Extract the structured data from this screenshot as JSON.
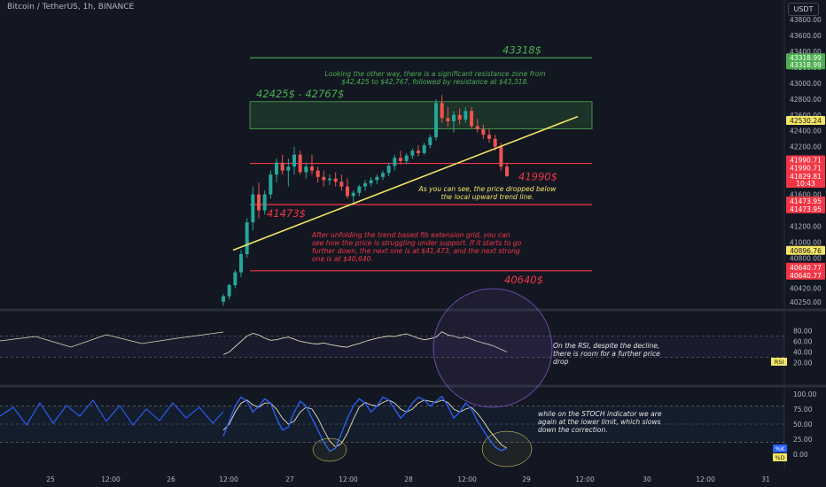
{
  "header": {
    "title": "Bitcoin / TetherUS, 1h, BINANCE",
    "currency": "USDT"
  },
  "colors": {
    "background": "#131722",
    "up": "#26a69a",
    "down": "#ef5350",
    "red_level": "#f23645",
    "green_level": "#4caf50",
    "trendline": "#f5e663",
    "rsi_line": "#e0d6b8",
    "stoch_k": "#2962ff",
    "stoch_d": "#e8e0c8"
  },
  "chart_data": [
    {
      "type": "candlestick",
      "series_name": "BTC/USDT",
      "y_ticks": [
        43800,
        43600,
        43400,
        43200,
        43000,
        42800,
        42600,
        42400,
        42200,
        42000,
        41800,
        41600,
        41400,
        41200,
        41000,
        40800,
        40600,
        40420,
        40250
      ],
      "x_ticks": [
        "25",
        "12:00",
        "26",
        "12:00",
        "27",
        "12:00",
        "28",
        "12:00",
        "29",
        "12:00",
        "30",
        "12:00",
        "31"
      ],
      "levels": [
        {
          "label": "43318$",
          "value": 43318,
          "color": "#4caf50"
        },
        {
          "label": "41990$",
          "value": 41990,
          "color": "#f23645"
        },
        {
          "label": "41473$",
          "value": 41473,
          "color": "#f23645"
        },
        {
          "label": "40640$",
          "value": 40640,
          "color": "#f23645"
        }
      ],
      "zone": {
        "label": "42425$ - 42767$",
        "from": 42425,
        "to": 42767
      },
      "price_tags": [
        {
          "text": "43318.99",
          "value": 43318.99,
          "color": "#4caf50"
        },
        {
          "text": "43318.99",
          "value": 43318.99,
          "color": "#4caf50",
          "dy": 8
        },
        {
          "text": "42530.24",
          "value": 42530.24,
          "color": "#f5e663",
          "fg": "#131722"
        },
        {
          "text": "41990.71",
          "value": 41990.71,
          "color": "#f23645",
          "dy": -4
        },
        {
          "text": "41990.71",
          "value": 41990.71,
          "color": "#f23645",
          "dy": 5
        },
        {
          "text": "41829.81",
          "value": 41829.81,
          "color": "#f23645"
        },
        {
          "text": "10:43",
          "value": 41829.81,
          "color": "#f23645",
          "dy": 8
        },
        {
          "text": "41473.95",
          "value": 41473.95,
          "color": "#f23645",
          "dy": -4
        },
        {
          "text": "41473.95",
          "value": 41473.95,
          "color": "#f23645",
          "dy": 5
        },
        {
          "text": "40896.76",
          "value": 40896.76,
          "color": "#f5e663",
          "fg": "#131722"
        },
        {
          "text": "40640.77",
          "value": 40640.77,
          "color": "#f23645",
          "dy": -4
        },
        {
          "text": "40640.77",
          "value": 40640.77,
          "color": "#f23645",
          "dy": 5
        }
      ],
      "trendline": [
        [
          40900,
          0
        ],
        [
          42580,
          1
        ]
      ],
      "candles": [
        [
          40250,
          40350,
          40200,
          40320
        ],
        [
          40320,
          40480,
          40280,
          40460
        ],
        [
          40460,
          40650,
          40420,
          40620
        ],
        [
          40620,
          40900,
          40560,
          40850
        ],
        [
          40850,
          41300,
          40800,
          41250
        ],
        [
          41250,
          41700,
          41150,
          41600
        ],
        [
          41600,
          41750,
          41300,
          41400
        ],
        [
          41400,
          41650,
          41350,
          41600
        ],
        [
          41600,
          41900,
          41550,
          41850
        ],
        [
          41850,
          42050,
          41750,
          42000
        ],
        [
          42000,
          42100,
          41850,
          41900
        ],
        [
          41900,
          42050,
          41700,
          41950
        ],
        [
          41950,
          42200,
          41850,
          42100
        ],
        [
          42100,
          42150,
          41850,
          41880
        ],
        [
          41880,
          42000,
          41800,
          41950
        ],
        [
          41950,
          42100,
          41850,
          41900
        ],
        [
          41900,
          41950,
          41750,
          41820
        ],
        [
          41820,
          41900,
          41700,
          41780
        ],
        [
          41780,
          41850,
          41720,
          41800
        ],
        [
          41800,
          41880,
          41700,
          41760
        ],
        [
          41760,
          41850,
          41650,
          41700
        ],
        [
          41700,
          41800,
          41550,
          41580
        ],
        [
          41580,
          41650,
          41500,
          41620
        ],
        [
          41620,
          41720,
          41580,
          41700
        ],
        [
          41700,
          41780,
          41650,
          41740
        ],
        [
          41740,
          41820,
          41700,
          41780
        ],
        [
          41780,
          41850,
          41730,
          41820
        ],
        [
          41820,
          41900,
          41780,
          41870
        ],
        [
          41870,
          42000,
          41830,
          41960
        ],
        [
          41960,
          42100,
          41900,
          42060
        ],
        [
          42060,
          42150,
          41980,
          42020
        ],
        [
          42020,
          42120,
          41980,
          42090
        ],
        [
          42090,
          42180,
          42050,
          42150
        ],
        [
          42150,
          42220,
          42080,
          42120
        ],
        [
          42120,
          42250,
          42100,
          42220
        ],
        [
          42220,
          42350,
          42180,
          42320
        ],
        [
          42320,
          42800,
          42280,
          42750
        ],
        [
          42750,
          42850,
          42500,
          42560
        ],
        [
          42560,
          42700,
          42450,
          42520
        ],
        [
          42520,
          42650,
          42380,
          42600
        ],
        [
          42600,
          42680,
          42480,
          42540
        ],
        [
          42540,
          42700,
          42500,
          42650
        ],
        [
          42650,
          42700,
          42430,
          42460
        ],
        [
          42460,
          42550,
          42380,
          42420
        ],
        [
          42420,
          42480,
          42300,
          42350
        ],
        [
          42350,
          42420,
          42250,
          42300
        ],
        [
          42300,
          42350,
          42150,
          42200
        ],
        [
          42200,
          42250,
          41900,
          41950
        ],
        [
          41950,
          42000,
          41820,
          41830
        ]
      ]
    },
    {
      "type": "line",
      "name": "RSI",
      "y_ticks": [
        80,
        60,
        40,
        20
      ],
      "ylim": [
        10,
        90
      ],
      "values": [
        35,
        40,
        50,
        60,
        70,
        75,
        72,
        66,
        62,
        63,
        66,
        68,
        64,
        60,
        58,
        56,
        55,
        57,
        54,
        52,
        50,
        49,
        53,
        56,
        60,
        63,
        66,
        68,
        70,
        69,
        72,
        74,
        70,
        66,
        63,
        65,
        68,
        78,
        72,
        70,
        66,
        68,
        64,
        60,
        57,
        54,
        50,
        45,
        40
      ],
      "hlines": [
        70,
        30
      ]
    },
    {
      "type": "line",
      "name": "STOCH",
      "y_ticks": [
        100.0,
        75.0,
        50.0,
        25.0,
        0.0
      ],
      "ylim": [
        0,
        100
      ],
      "series": [
        {
          "name": "%K",
          "values": [
            30,
            55,
            80,
            95,
            88,
            70,
            80,
            92,
            85,
            60,
            40,
            45,
            70,
            88,
            80,
            60,
            40,
            20,
            5,
            10,
            35,
            60,
            80,
            92,
            85,
            70,
            80,
            95,
            90,
            75,
            60,
            70,
            85,
            95,
            90,
            80,
            88,
            96,
            80,
            60,
            70,
            85,
            75,
            55,
            40,
            25,
            12,
            6,
            10
          ]
        },
        {
          "name": "%D",
          "values": [
            40,
            50,
            70,
            85,
            90,
            82,
            78,
            85,
            85,
            75,
            60,
            50,
            55,
            70,
            78,
            75,
            60,
            40,
            22,
            12,
            18,
            35,
            58,
            78,
            86,
            82,
            80,
            86,
            90,
            85,
            75,
            70,
            75,
            85,
            90,
            88,
            86,
            90,
            86,
            75,
            70,
            75,
            78,
            68,
            55,
            40,
            28,
            16,
            10
          ]
        }
      ],
      "hlines": [
        80,
        20
      ]
    }
  ],
  "annotations": {
    "resistance_text": "Looking the other way, there is a significant resistance zone from $42,425 to $42,767, followed by resistance at $43,318.",
    "trendline_text": "As you can see, the price dropped below the local upward trend line.",
    "fib_text": "After unfolding the trend based fib extension grid, you can see how the price is struggling under support. If it starts to go further down, the next one is at $41,473, and the next strong one is at $40,640.",
    "rsi_text": "On the RSI, despite the decline, there is room for a further price drop",
    "stoch_text": "while on the STOCH indicator we are again at the lower limit, which slows down the correction."
  },
  "indicator_tags": {
    "rsi": "RSI",
    "stoch_k": "%K",
    "stoch_d": "%D"
  },
  "icons": [
    "trendline",
    "horizontal-line",
    "rectangle-zone",
    "circle-highlight"
  ]
}
